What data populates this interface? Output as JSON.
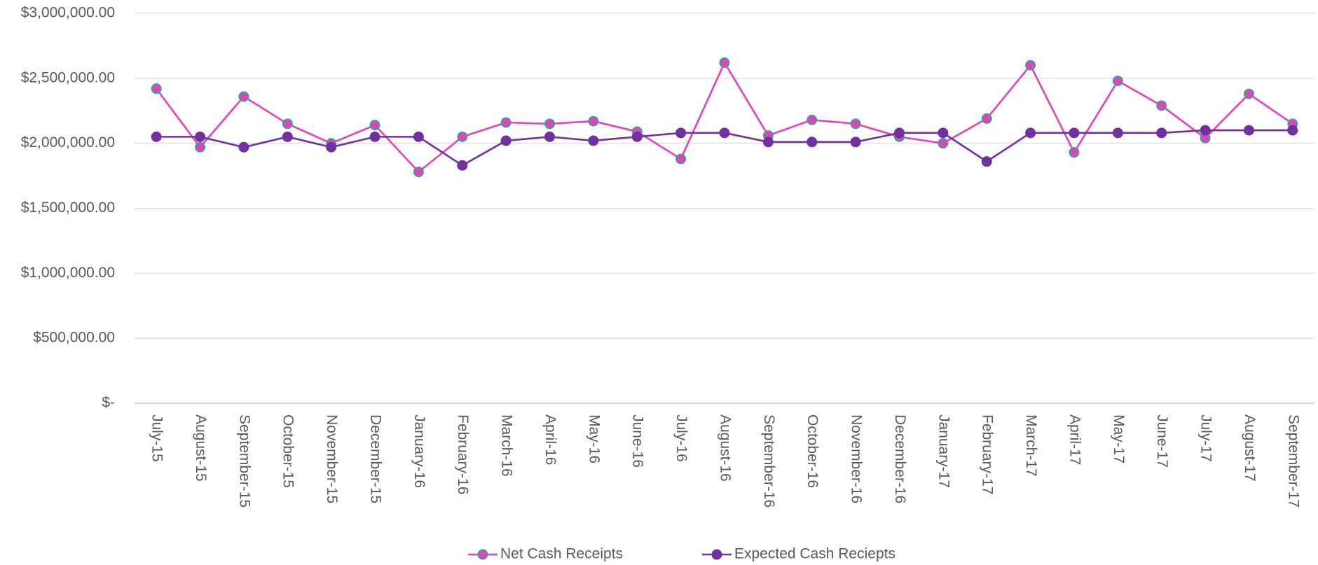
{
  "chart_data": {
    "type": "line",
    "categories": [
      "July-15",
      "August-15",
      "September-15",
      "October-15",
      "November-15",
      "December-15",
      "January-16",
      "February-16",
      "March-16",
      "April-16",
      "May-16",
      "June-16",
      "July-16",
      "August-16",
      "September-16",
      "October-16",
      "November-16",
      "December-16",
      "January-17",
      "February-17",
      "March-17",
      "April-17",
      "May-17",
      "June-17",
      "July-17",
      "August-17",
      "September-17"
    ],
    "series": [
      {
        "name": "Net Cash Receipts",
        "color": "#e83fbf",
        "marker_edge": "#2fa88f",
        "values": [
          2420000,
          1970000,
          2360000,
          2150000,
          2000000,
          2140000,
          1780000,
          2050000,
          2160000,
          2150000,
          2170000,
          2090000,
          1880000,
          2620000,
          2060000,
          2180000,
          2150000,
          2050000,
          2000000,
          2190000,
          2600000,
          1930000,
          2480000,
          2290000,
          2040000,
          2380000,
          2150000
        ]
      },
      {
        "name": "Expected Cash Reciepts",
        "color": "#7030a0",
        "marker_edge": "#7030a0",
        "values": [
          2050000,
          2050000,
          1970000,
          2050000,
          1970000,
          2050000,
          2050000,
          1830000,
          2020000,
          2050000,
          2020000,
          2050000,
          2080000,
          2080000,
          2010000,
          2010000,
          2010000,
          2080000,
          2080000,
          1860000,
          2080000,
          2080000,
          2080000,
          2080000,
          2100000,
          2100000,
          2100000
        ]
      }
    ],
    "ylim": [
      0,
      3000000
    ],
    "yticks": [
      {
        "value": 0,
        "label": "$-"
      },
      {
        "value": 500000,
        "label": "$500,000.00"
      },
      {
        "value": 1000000,
        "label": "$1,000,000.00"
      },
      {
        "value": 1500000,
        "label": "$1,500,000.00"
      },
      {
        "value": 2000000,
        "label": "$2,000,000.00"
      },
      {
        "value": 2500000,
        "label": "$2,500,000.00"
      },
      {
        "value": 3000000,
        "label": "$3,000,000.00"
      }
    ],
    "grid": true,
    "legend": "bottom"
  }
}
